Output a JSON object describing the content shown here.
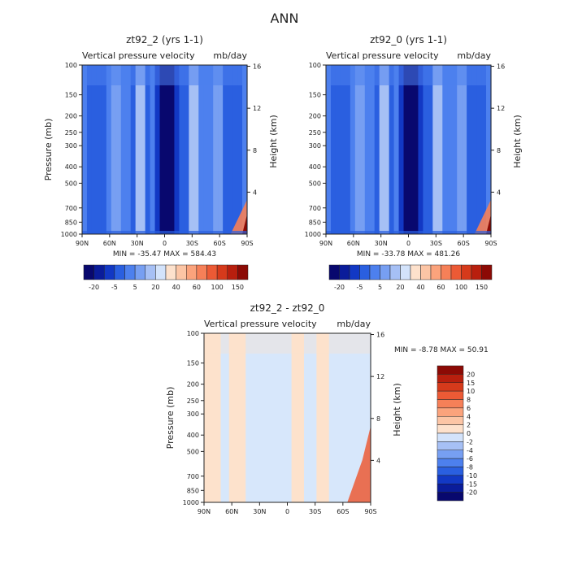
{
  "figure_title": "ANN",
  "colors": {
    "background_field_light": "#a6c8f0",
    "background_field_dark": "#08086e",
    "diff_light_blue": "#d7e7fb",
    "diff_light_orange": "#fde2cc"
  },
  "chart_data": [
    {
      "id": "panel1",
      "type": "heatmap",
      "title": "zt92_2 (yrs 1-1)",
      "subtitle_left": "Vertical pressure velocity",
      "subtitle_right": "mb/day",
      "ylabel": "Pressure (mb)",
      "ylabel_right": "Height (km)",
      "y_scale": "log",
      "ylim": [
        1000,
        100
      ],
      "x_ticks": [
        "90N",
        "60N",
        "30N",
        "0",
        "30S",
        "60S",
        "90S"
      ],
      "y_ticks": [
        "100",
        "150",
        "200",
        "250",
        "300",
        "400",
        "500",
        "700",
        "850",
        "1000"
      ],
      "height_ticks": [
        "16",
        "12",
        "8",
        "4"
      ],
      "stats": "MIN = -35.47   MAX = 584.43",
      "colorbar": {
        "orientation": "horizontal",
        "labels": [
          "-20",
          "-5",
          "5",
          "20",
          "40",
          "60",
          "100",
          "150"
        ],
        "colors": [
          "#08086e",
          "#0a1c9a",
          "#1238c4",
          "#2a5fe0",
          "#4d80ee",
          "#779ff2",
          "#a6c0f5",
          "#d3e3fb",
          "#fde1cc",
          "#fcc5a5",
          "#fba37c",
          "#f68058",
          "#ec5a35",
          "#d63a1b",
          "#b81f0e",
          "#8c0a05"
        ]
      }
    },
    {
      "id": "panel2",
      "type": "heatmap",
      "title": "zt92_0 (yrs 1-1)",
      "subtitle_left": "Vertical pressure velocity",
      "subtitle_right": "mb/day",
      "ylabel": "",
      "ylabel_right": "Height (km)",
      "y_scale": "log",
      "ylim": [
        1000,
        100
      ],
      "x_ticks": [
        "90N",
        "60N",
        "30N",
        "0",
        "30S",
        "60S",
        "90S"
      ],
      "y_ticks": [
        "100",
        "150",
        "200",
        "250",
        "300",
        "400",
        "500",
        "700",
        "850",
        "1000"
      ],
      "height_ticks": [
        "16",
        "12",
        "8",
        "4"
      ],
      "stats": "MIN = -33.78   MAX = 481.26",
      "colorbar": {
        "orientation": "horizontal",
        "labels": [
          "-20",
          "-5",
          "5",
          "20",
          "40",
          "60",
          "100",
          "150"
        ],
        "colors": [
          "#08086e",
          "#0a1c9a",
          "#1238c4",
          "#2a5fe0",
          "#4d80ee",
          "#779ff2",
          "#a6c0f5",
          "#d3e3fb",
          "#fde1cc",
          "#fcc5a5",
          "#fba37c",
          "#f68058",
          "#ec5a35",
          "#d63a1b",
          "#b81f0e",
          "#8c0a05"
        ]
      }
    },
    {
      "id": "panel3",
      "type": "heatmap",
      "title": "zt92_2 - zt92_0",
      "subtitle_left": "Vertical pressure velocity",
      "subtitle_right": "mb/day",
      "ylabel": "Pressure (mb)",
      "ylabel_right": "Height (km)",
      "y_scale": "log",
      "ylim": [
        1000,
        100
      ],
      "x_ticks": [
        "90N",
        "60N",
        "30N",
        "0",
        "30S",
        "60S",
        "90S"
      ],
      "y_ticks": [
        "100",
        "150",
        "200",
        "250",
        "300",
        "400",
        "500",
        "700",
        "850",
        "1000"
      ],
      "height_ticks": [
        "16",
        "12",
        "8",
        "4"
      ],
      "stats": "MIN =   -8.78   MAX =   50.91",
      "colorbar": {
        "orientation": "vertical",
        "labels": [
          "20",
          "15",
          "10",
          "8",
          "6",
          "4",
          "2",
          "0",
          "-2",
          "-4",
          "-6",
          "-8",
          "-10",
          "-15",
          "-20"
        ],
        "colors": [
          "#8c0a05",
          "#b81f0e",
          "#d63a1b",
          "#ec5a35",
          "#f68058",
          "#fba37c",
          "#fcc5a5",
          "#fde1cc",
          "#d3e3fb",
          "#a6c0f5",
          "#779ff2",
          "#4d80ee",
          "#2a5fe0",
          "#1238c4",
          "#0a1c9a",
          "#08086e"
        ]
      }
    }
  ]
}
